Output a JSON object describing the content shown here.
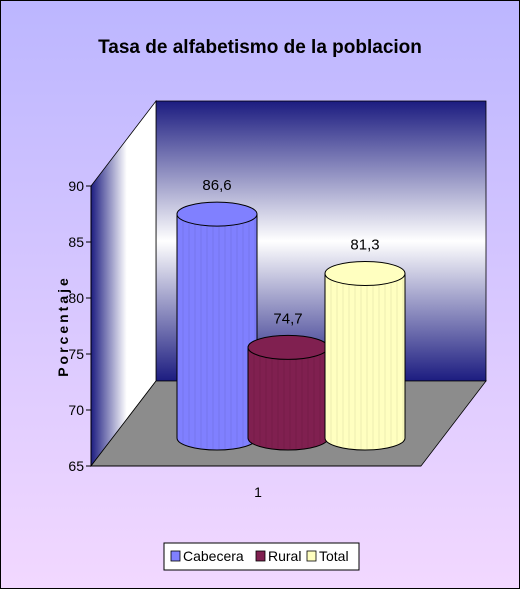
{
  "chart_data": {
    "type": "bar",
    "title": "Tasa de alfabetismo de la poblacion",
    "xlabel": "",
    "ylabel": "Porcentaje",
    "categories": [
      "1"
    ],
    "ylim": [
      65,
      90
    ],
    "yticks": [
      65,
      70,
      75,
      80,
      85,
      90
    ],
    "grid": false,
    "legend_position": "bottom",
    "series": [
      {
        "name": "Cabecera",
        "values": [
          86.6
        ],
        "label": "86,6",
        "color": "#8080ff"
      },
      {
        "name": "Rural",
        "values": [
          74.7
        ],
        "label": "74,7",
        "color": "#802050"
      },
      {
        "name": "Total",
        "values": [
          81.3
        ],
        "label": "81,3",
        "color": "#ffffc0"
      }
    ],
    "colors": {
      "background_top": "#bcb6ff",
      "background_bottom": "#f2d8ff",
      "back_wall": "#1c1c80",
      "floor": "#8c8c8c"
    }
  }
}
